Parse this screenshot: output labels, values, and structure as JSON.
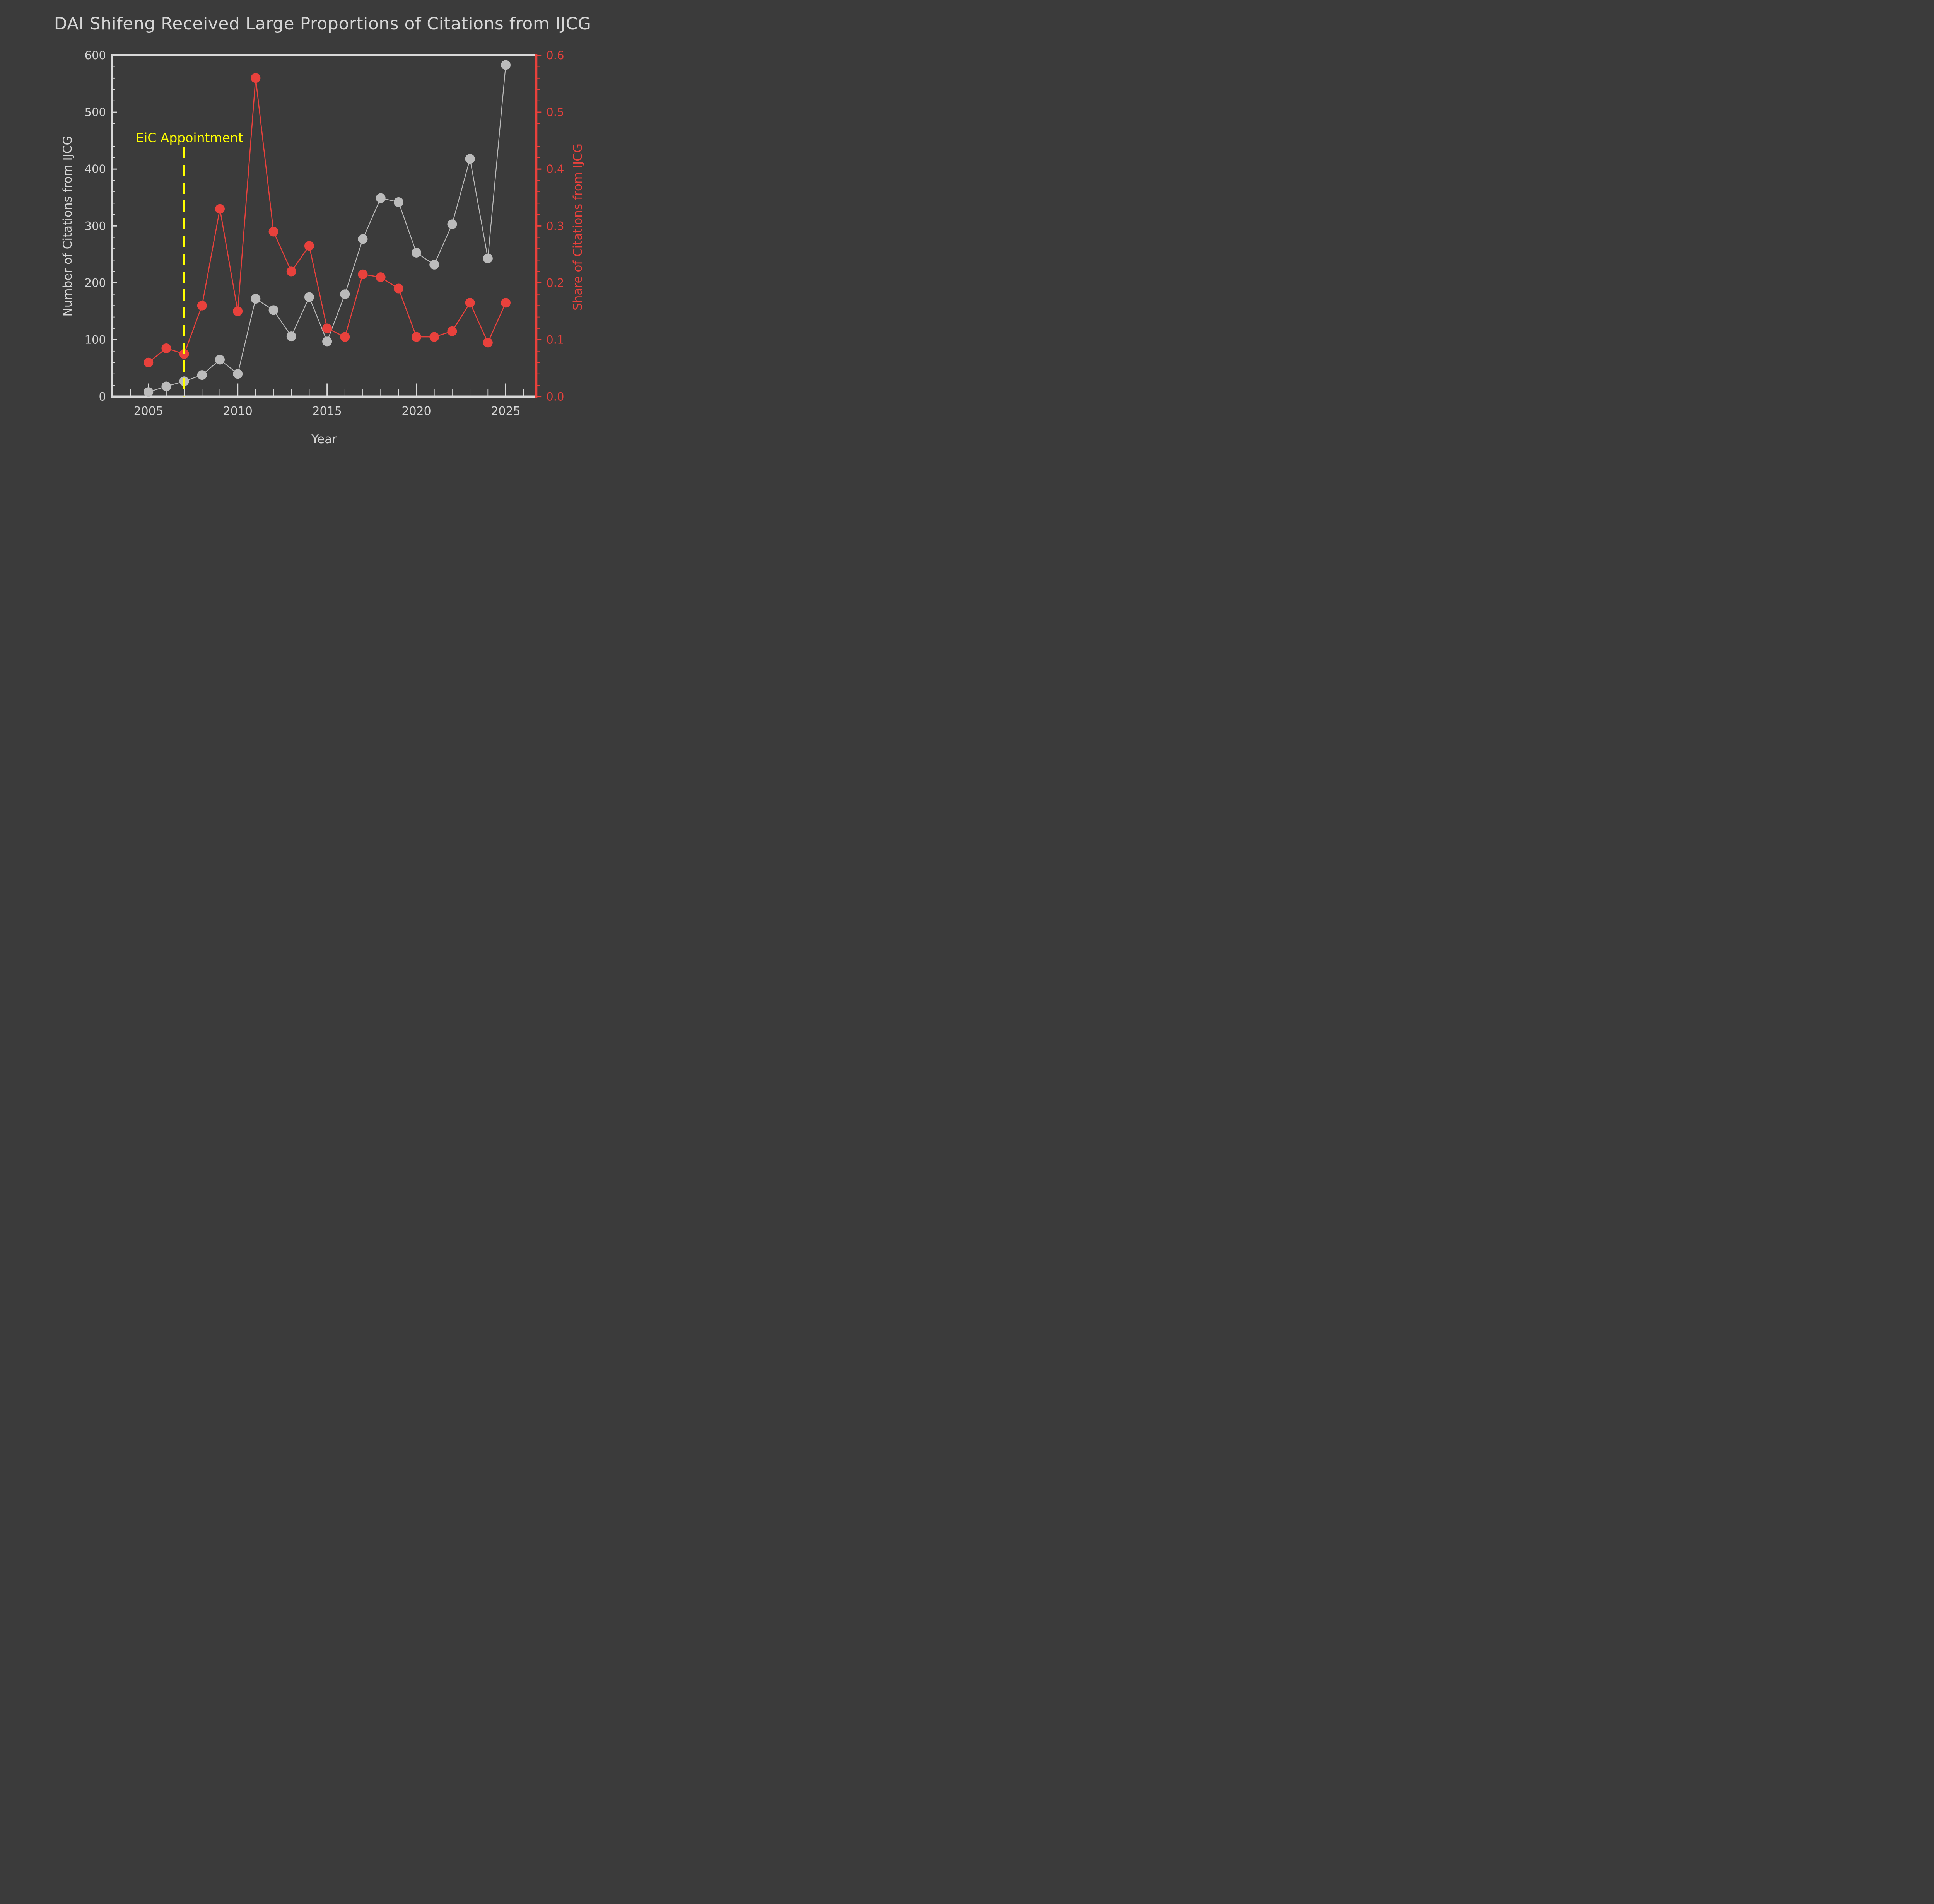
{
  "title": "DAI Shifeng Received Large Proportions of Citations from IJCG",
  "colors": {
    "background": "#3b3b3b",
    "citations_series": "#bbbbbb",
    "share_series": "#e8413c",
    "annotation": "#ffff00",
    "text": "#d6d6d6",
    "spine_light": "#d8d8d8"
  },
  "chart_data": {
    "type": "line",
    "x": [
      2005,
      2006,
      2007,
      2008,
      2009,
      2010,
      2011,
      2012,
      2013,
      2014,
      2015,
      2016,
      2017,
      2018,
      2019,
      2020,
      2021,
      2022,
      2023,
      2024,
      2025
    ],
    "series": [
      {
        "name": "Number of Citations from IJCG",
        "axis": "left",
        "color": "#bbbbbb",
        "marker": "circle",
        "values": [
          8,
          18,
          27,
          38,
          65,
          40,
          172,
          152,
          106,
          175,
          97,
          180,
          277,
          349,
          342,
          253,
          232,
          303,
          418,
          243,
          583
        ]
      },
      {
        "name": "Share of Citations from IJCG",
        "axis": "right",
        "color": "#e8413c",
        "marker": "circle",
        "values": [
          0.06,
          0.085,
          0.075,
          0.16,
          0.33,
          0.15,
          0.56,
          0.29,
          0.22,
          0.265,
          0.12,
          0.105,
          0.215,
          0.21,
          0.19,
          0.105,
          0.105,
          0.115,
          0.165,
          0.095,
          0.165
        ]
      }
    ],
    "xlabel": "Year",
    "ylabel_left": "Number of Citations from IJCG",
    "ylabel_right": "Share of Citations from IJCG",
    "xlim": [
      2003,
      2027
    ],
    "ylim_left": [
      0,
      600
    ],
    "ylim_right": [
      0.0,
      0.6
    ],
    "xticks": [
      2005,
      2010,
      2015,
      2020,
      2025
    ],
    "xticks_minor_every": 1,
    "yticks_left": [
      "0",
      "100",
      "200",
      "300",
      "400",
      "500",
      "600"
    ],
    "yticks_left_values": [
      0,
      100,
      200,
      300,
      400,
      500,
      600
    ],
    "yticks_left_minor_step": 20,
    "yticks_right": [
      "0.0",
      "0.1",
      "0.2",
      "0.3",
      "0.4",
      "0.5",
      "0.6"
    ],
    "yticks_right_values": [
      0.0,
      0.1,
      0.2,
      0.3,
      0.4,
      0.5,
      0.6
    ],
    "yticks_right_minor_step": 0.02,
    "grid": false,
    "legend": false,
    "annotation": {
      "text": "EiC Appointment",
      "x": 2007,
      "line_style": "dashed",
      "line_color": "#ffff00"
    }
  }
}
